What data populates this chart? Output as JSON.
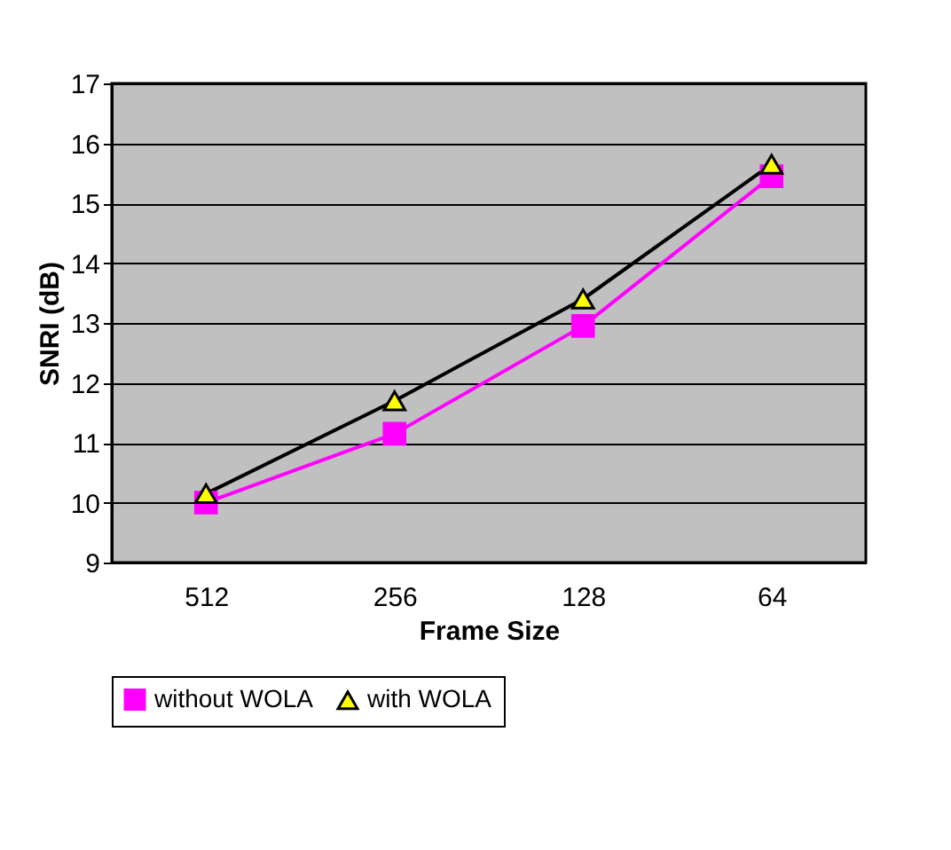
{
  "chart_data": {
    "type": "line",
    "xlabel": "Frame Size",
    "ylabel": "SNRI (dB)",
    "categories": [
      "512",
      "256",
      "128",
      "64"
    ],
    "series": [
      {
        "name": "without WOLA",
        "color": "#ff00ff",
        "marker": "square",
        "values": [
          10.0,
          11.15,
          12.95,
          15.45
        ]
      },
      {
        "name": "with WOLA",
        "color": "#000000",
        "marker": "triangle",
        "values": [
          10.15,
          11.7,
          13.4,
          15.65
        ]
      }
    ],
    "ylim": [
      9,
      17
    ],
    "yticks": [
      9,
      10,
      11,
      12,
      13,
      14,
      15,
      16,
      17
    ],
    "grid": "y",
    "legend": "bottom",
    "line_style": "solid"
  }
}
